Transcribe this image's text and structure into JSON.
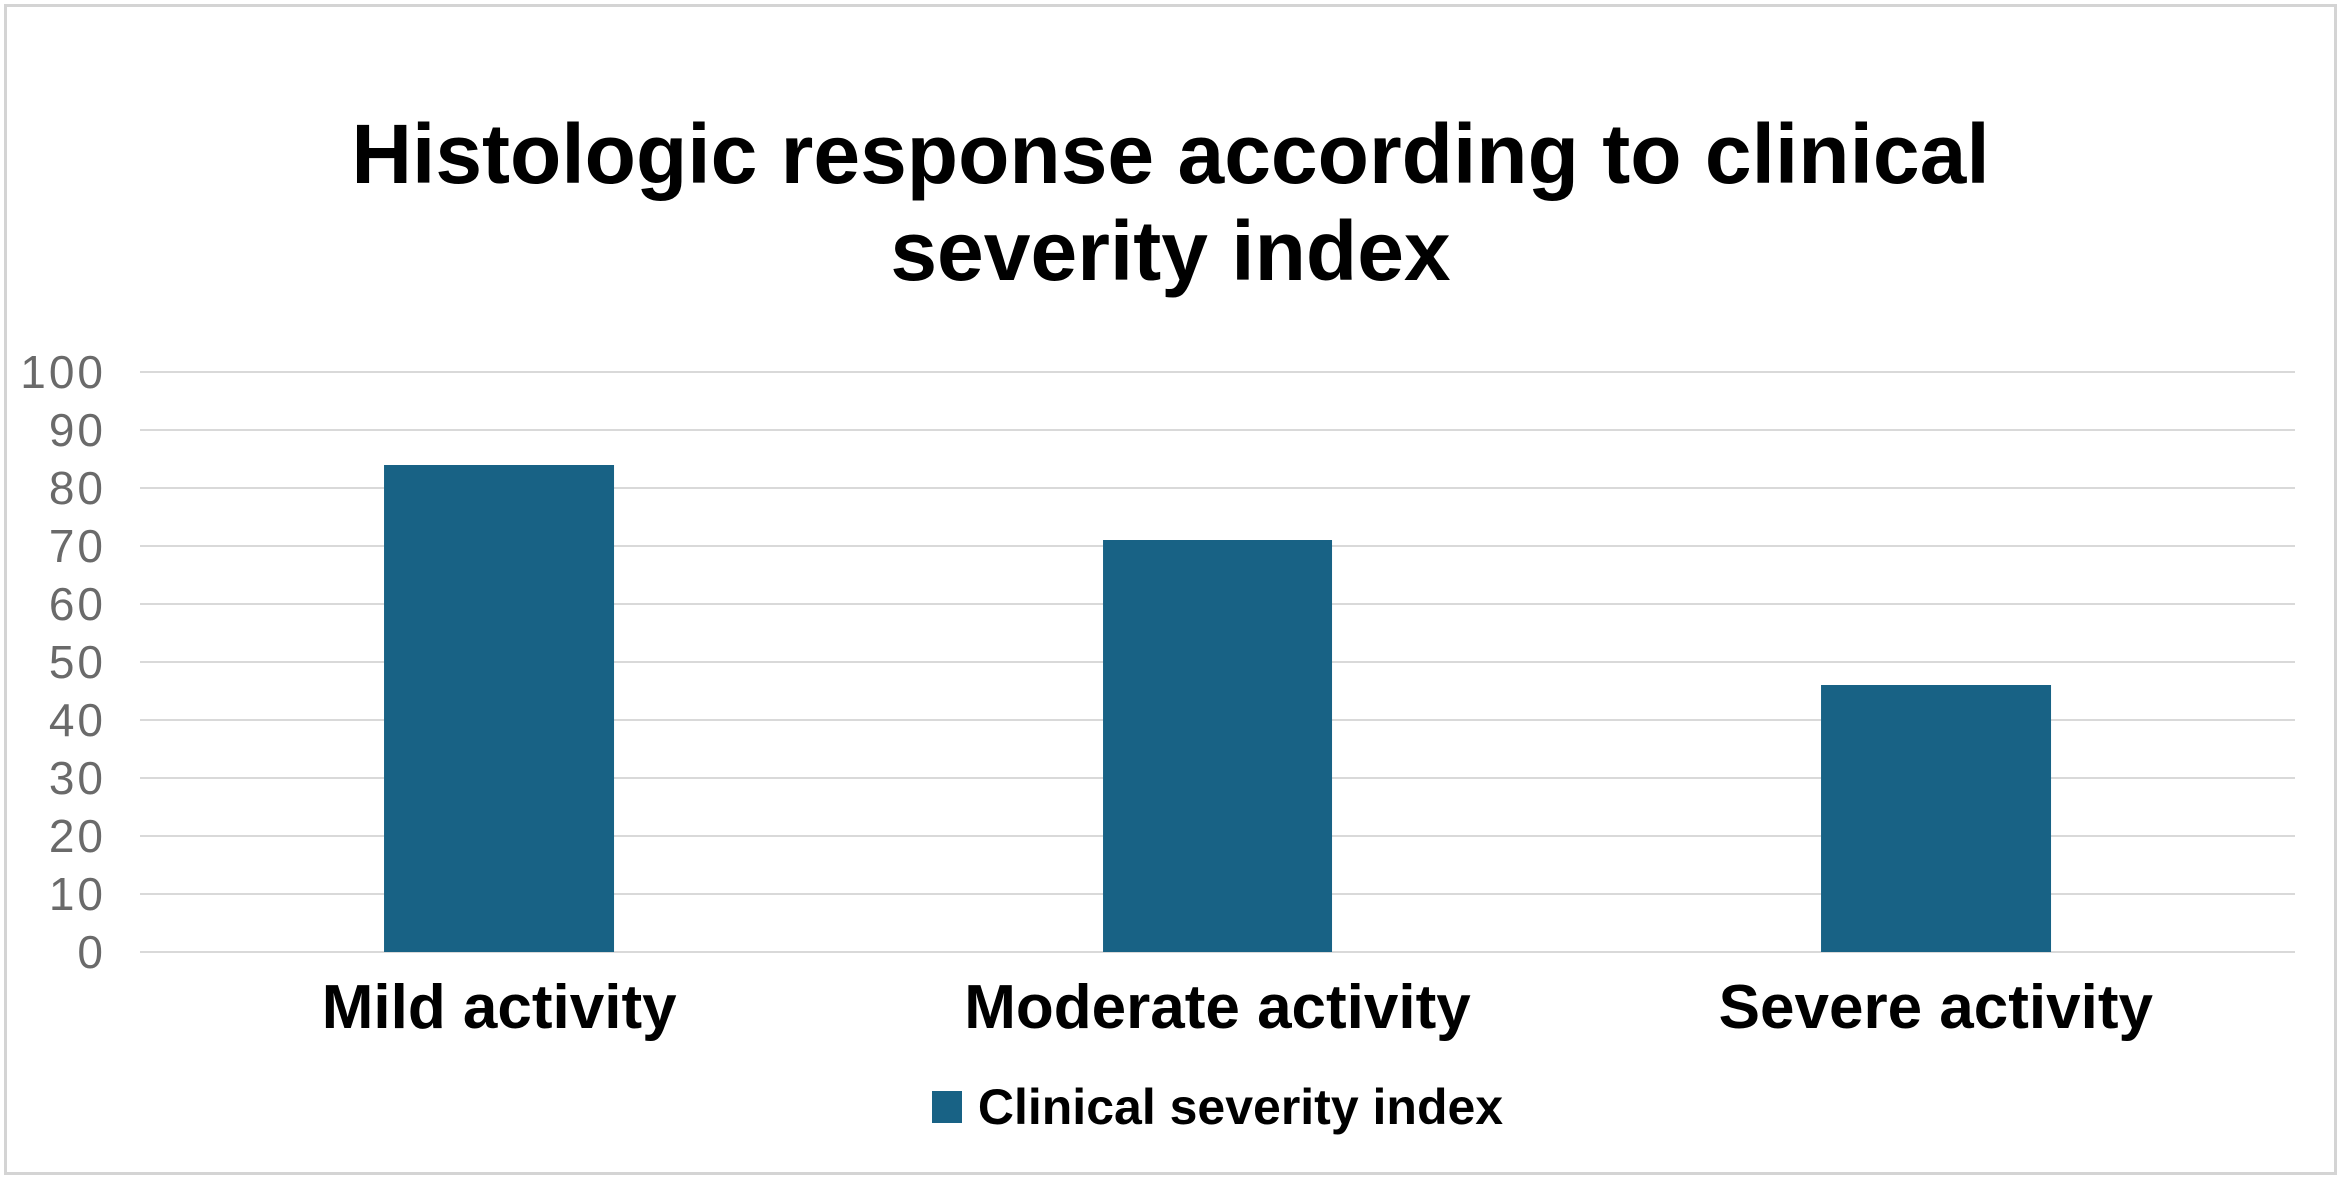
{
  "chart_data": {
    "type": "bar",
    "title": "Histologic response according to clinical severity index",
    "categories": [
      "Mild activity",
      "Moderate activity",
      "Severe activity"
    ],
    "values": [
      84,
      71,
      46
    ],
    "series": [
      {
        "name": "Clinical severity index",
        "values": [
          84,
          71,
          46
        ]
      }
    ],
    "xlabel": "",
    "ylabel": "",
    "ylim": [
      0,
      100
    ],
    "yticks": [
      0,
      10,
      20,
      30,
      40,
      50,
      60,
      70,
      80,
      90,
      100
    ],
    "grid": "horizontal",
    "legend_position": "bottom-center",
    "legend_label": "Clinical severity index"
  },
  "colors": {
    "bar_fill": "#186285",
    "gridline": "#d9d9d9",
    "tick_label": "#6a6a6a",
    "title_text": "#000000",
    "figure_border": "#d4d4d4",
    "background": "#ffffff"
  }
}
